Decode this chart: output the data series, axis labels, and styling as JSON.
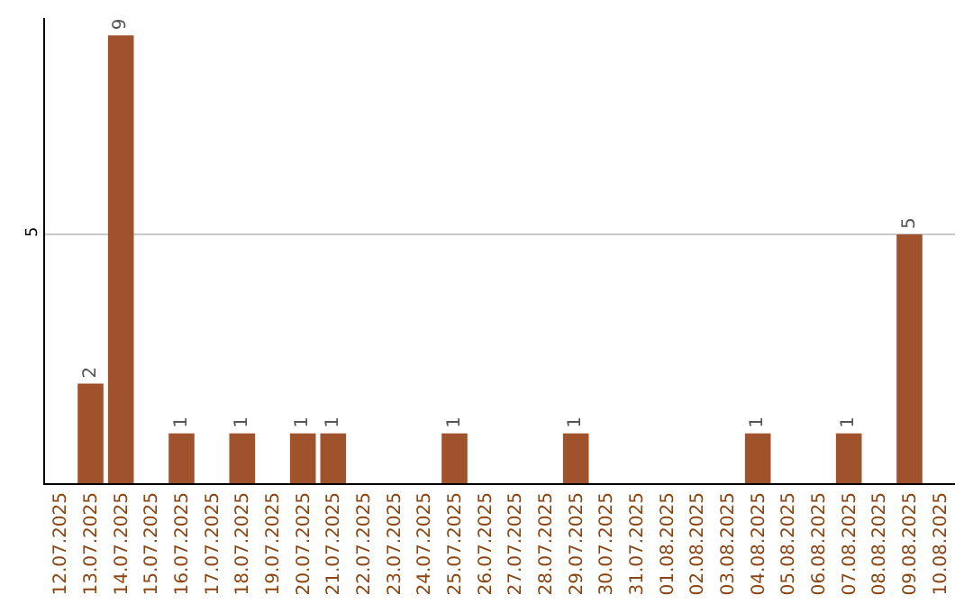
{
  "chart_data": {
    "type": "bar",
    "categories": [
      "12.07.2025",
      "13.07.2025",
      "14.07.2025",
      "15.07.2025",
      "16.07.2025",
      "17.07.2025",
      "18.07.2025",
      "19.07.2025",
      "20.07.2025",
      "21.07.2025",
      "22.07.2025",
      "23.07.2025",
      "24.07.2025",
      "25.07.2025",
      "26.07.2025",
      "27.07.2025",
      "28.07.2025",
      "29.07.2025",
      "30.07.2025",
      "31.07.2025",
      "01.08.2025",
      "02.08.2025",
      "03.08.2025",
      "04.08.2025",
      "05.08.2025",
      "06.08.2025",
      "07.08.2025",
      "08.08.2025",
      "09.08.2025",
      "10.08.2025"
    ],
    "values": [
      0,
      2,
      9,
      0,
      1,
      0,
      1,
      0,
      1,
      1,
      0,
      0,
      0,
      1,
      0,
      0,
      0,
      1,
      0,
      0,
      0,
      0,
      0,
      1,
      0,
      0,
      1,
      0,
      5,
      0
    ],
    "value_labels": [
      null,
      "2",
      "9",
      null,
      "1",
      null,
      "1",
      null,
      "1",
      "1",
      null,
      null,
      null,
      "1",
      null,
      null,
      null,
      "1",
      null,
      null,
      null,
      null,
      null,
      "1",
      null,
      null,
      "1",
      null,
      "5",
      null
    ],
    "color": "#a0522d",
    "ylim": [
      0,
      9.35
    ],
    "yticks": [
      5
    ],
    "grid": "y"
  }
}
